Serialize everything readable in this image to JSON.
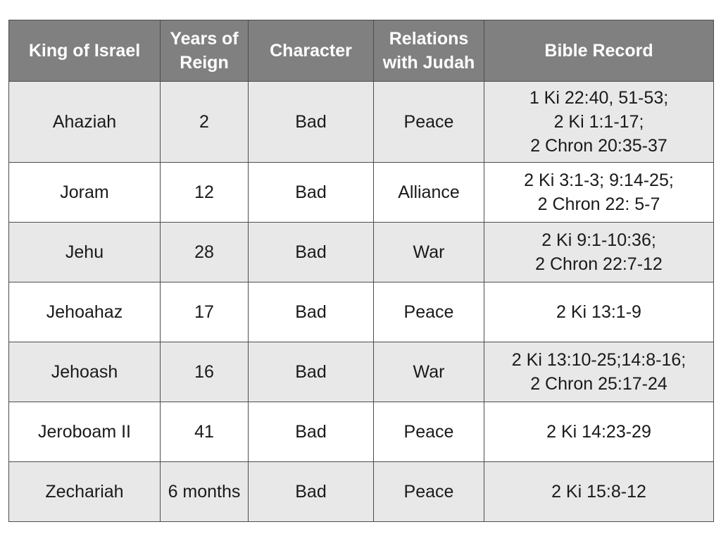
{
  "table": {
    "headers": {
      "king": [
        "King of Israel"
      ],
      "years": [
        "Years of",
        "Reign"
      ],
      "character": [
        "Character"
      ],
      "relations": [
        "Relations",
        "with Judah"
      ],
      "record": [
        "Bible Record"
      ]
    },
    "rows": [
      {
        "king": "Ahaziah",
        "years": "2",
        "character": "Bad",
        "relations": "Peace",
        "record": [
          "1 Ki 22:40, 51-53;",
          "2 Ki 1:1-17;",
          "2 Chron 20:35-37"
        ]
      },
      {
        "king": "Joram",
        "years": "12",
        "character": "Bad",
        "relations": "Alliance",
        "record": [
          "2 Ki 3:1-3; 9:14-25;",
          "2 Chron 22: 5-7"
        ]
      },
      {
        "king": "Jehu",
        "years": "28",
        "character": "Bad",
        "relations": "War",
        "record": [
          "2 Ki 9:1-10:36;",
          "2 Chron 22:7-12"
        ]
      },
      {
        "king": "Jehoahaz",
        "years": "17",
        "character": "Bad",
        "relations": "Peace",
        "record": [
          "2 Ki 13:1-9"
        ]
      },
      {
        "king": "Jehoash",
        "years": "16",
        "character": "Bad",
        "relations": "War",
        "record": [
          "2 Ki 13:10-25;14:8-16;",
          "2 Chron 25:17-24"
        ]
      },
      {
        "king": "Jeroboam II",
        "years": "41",
        "character": "Bad",
        "relations": "Peace",
        "record": [
          "2 Ki 14:23-29"
        ]
      },
      {
        "king": "Zechariah",
        "years": "6 months",
        "character": "Bad",
        "relations": "Peace",
        "record": [
          "2 Ki 15:8-12"
        ]
      }
    ]
  },
  "colors": {
    "header_bg": "#808080",
    "header_text": "#ffffff",
    "row_shaded": "#e8e8e8",
    "row_plain": "#ffffff",
    "border": "#4d4d4d"
  }
}
